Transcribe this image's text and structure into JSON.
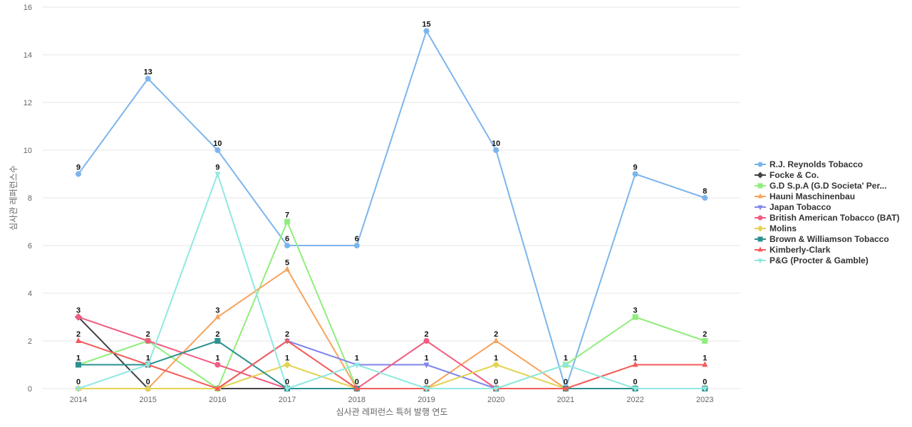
{
  "chart_data": {
    "type": "line",
    "title": "",
    "xlabel": "심사관 레퍼런스 특허 발행 연도",
    "ylabel": "심사관 레퍼런스수",
    "ylim": [
      0,
      16
    ],
    "yticks": [
      0,
      2,
      4,
      6,
      8,
      10,
      12,
      14,
      16
    ],
    "grid": true,
    "legend_position": "right",
    "categories": [
      "2014",
      "2015",
      "2016",
      "2017",
      "2018",
      "2019",
      "2020",
      "2021",
      "2022",
      "2023"
    ],
    "series": [
      {
        "name": "R.J. Reynolds Tobacco",
        "color": "#7cb5ec",
        "marker": "circle",
        "values": [
          9,
          13,
          10,
          6,
          6,
          15,
          10,
          0,
          9,
          8
        ],
        "labels": [
          9,
          13,
          10,
          6,
          6,
          15,
          10,
          null,
          9,
          8
        ]
      },
      {
        "name": "Focke & Co.",
        "color": "#434348",
        "marker": "diamond",
        "values": [
          3,
          0,
          0,
          0,
          0,
          0,
          0,
          0,
          0,
          0
        ],
        "labels": [
          3,
          0,
          null,
          null,
          null,
          null,
          null,
          null,
          null,
          null
        ]
      },
      {
        "name": "G.D S.p.A (G.D Societa' Per...",
        "color": "#90ed7d",
        "marker": "square",
        "values": [
          1,
          2,
          0,
          7,
          0,
          0,
          0,
          1,
          3,
          2
        ],
        "labels": [
          null,
          2,
          null,
          7,
          null,
          null,
          null,
          null,
          3,
          2
        ]
      },
      {
        "name": "Hauni Maschinenbau",
        "color": "#f7a35c",
        "marker": "triangle",
        "values": [
          0,
          0,
          3,
          5,
          0,
          0,
          2,
          0,
          0,
          0
        ],
        "labels": [
          null,
          null,
          3,
          5,
          null,
          null,
          2,
          null,
          null,
          null
        ]
      },
      {
        "name": "Japan Tobacco",
        "color": "#8085e9",
        "marker": "triangle-down",
        "values": [
          0,
          0,
          0,
          2,
          1,
          1,
          0,
          0,
          0,
          0
        ],
        "labels": [
          null,
          null,
          null,
          null,
          null,
          1,
          null,
          null,
          null,
          null
        ]
      },
      {
        "name": "British American Tobacco (BAT)",
        "color": "#f15c80",
        "marker": "circle",
        "values": [
          3,
          2,
          1,
          0,
          0,
          2,
          0,
          0,
          0,
          0
        ],
        "labels": [
          null,
          null,
          1,
          null,
          null,
          2,
          null,
          null,
          null,
          null
        ]
      },
      {
        "name": "Molins",
        "color": "#e4d354",
        "marker": "diamond",
        "values": [
          0,
          0,
          0,
          1,
          0,
          0,
          1,
          0,
          0,
          0
        ],
        "labels": [
          null,
          null,
          null,
          1,
          null,
          null,
          1,
          null,
          null,
          null
        ]
      },
      {
        "name": "Brown & Williamson Tobacco",
        "color": "#2b908f",
        "marker": "square",
        "values": [
          1,
          1,
          2,
          0,
          0,
          0,
          0,
          0,
          0,
          0
        ],
        "labels": [
          1,
          1,
          2,
          null,
          null,
          null,
          null,
          null,
          null,
          null
        ]
      },
      {
        "name": "Kimberly-Clark",
        "color": "#f45b5b",
        "marker": "triangle",
        "values": [
          2,
          1,
          0,
          2,
          0,
          0,
          0,
          0,
          1,
          1
        ],
        "labels": [
          2,
          null,
          null,
          2,
          0,
          null,
          null,
          0,
          1,
          1
        ]
      },
      {
        "name": "P&G (Procter & Gamble)",
        "color": "#91e8e1",
        "marker": "triangle-down",
        "values": [
          0,
          1,
          9,
          0,
          1,
          0,
          0,
          1,
          0,
          0
        ],
        "labels": [
          0,
          null,
          9,
          0,
          1,
          0,
          0,
          1,
          0,
          0
        ]
      }
    ]
  }
}
